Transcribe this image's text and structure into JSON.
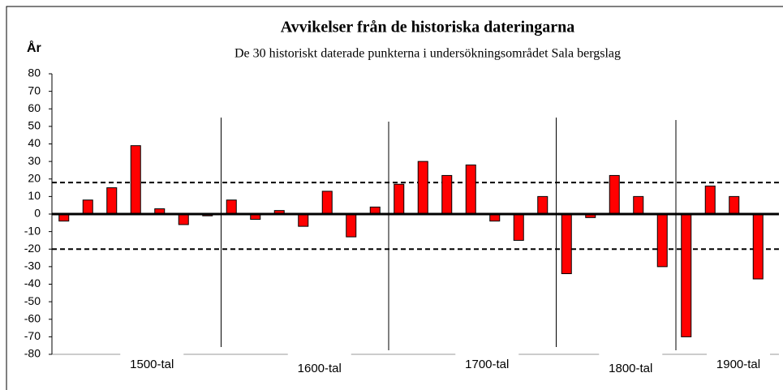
{
  "chart_data": {
    "type": "bar",
    "title": "Avvikelser från de historiska dateringarna",
    "subtitle": "De 30 historiskt daterade punkterna i undersökningsområdet Sala bergslag",
    "y_label": "År",
    "values": [
      -4,
      8,
      15,
      39,
      3,
      -6,
      -1,
      8,
      -3,
      2,
      -7,
      13,
      -13,
      4,
      17,
      30,
      22,
      28,
      -4,
      -15,
      10,
      -34,
      -2,
      22,
      10,
      -30,
      -70,
      16,
      10,
      -37
    ],
    "color": "#ff0000",
    "groups": [
      {
        "label": "1500-tal",
        "size": 7
      },
      {
        "label": "1600-tal",
        "size": 7
      },
      {
        "label": "1700-tal",
        "size": 7
      },
      {
        "label": "1800-tal",
        "size": 5
      },
      {
        "label": "1900-tal",
        "size": 4
      }
    ],
    "reference_lines": [
      18,
      -20
    ],
    "ylim": [
      -80,
      80
    ],
    "yticks": [
      -80,
      -70,
      -60,
      -50,
      -40,
      -30,
      -20,
      -10,
      0,
      10,
      20,
      30,
      40,
      50,
      60,
      70,
      80
    ],
    "grid": false
  }
}
